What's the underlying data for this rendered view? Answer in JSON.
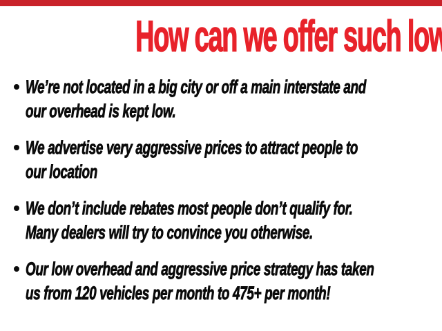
{
  "colors": {
    "accent_red": "#e8222a",
    "top_bar_red": "#c9222a",
    "text_black": "#0b0b0b",
    "background": "#ffffff"
  },
  "top_bar": {
    "description": "solid red accent strip across top edge"
  },
  "headline": {
    "text": "How can we offer such low prices?"
  },
  "bullets": [
    {
      "lines": [
        "We’re not located in a big city or off a main interstate and",
        "our overhead is kept low."
      ]
    },
    {
      "lines": [
        "We advertise very aggressive prices to attract people to",
        "our location"
      ]
    },
    {
      "lines": [
        "We don’t include rebates most people don’t qualify for.",
        "Many dealers will try to convince you otherwise."
      ]
    },
    {
      "lines": [
        "Our low overhead and aggressive price strategy has taken",
        "us from 120 vehicles per month to 475+ per month!"
      ]
    }
  ]
}
